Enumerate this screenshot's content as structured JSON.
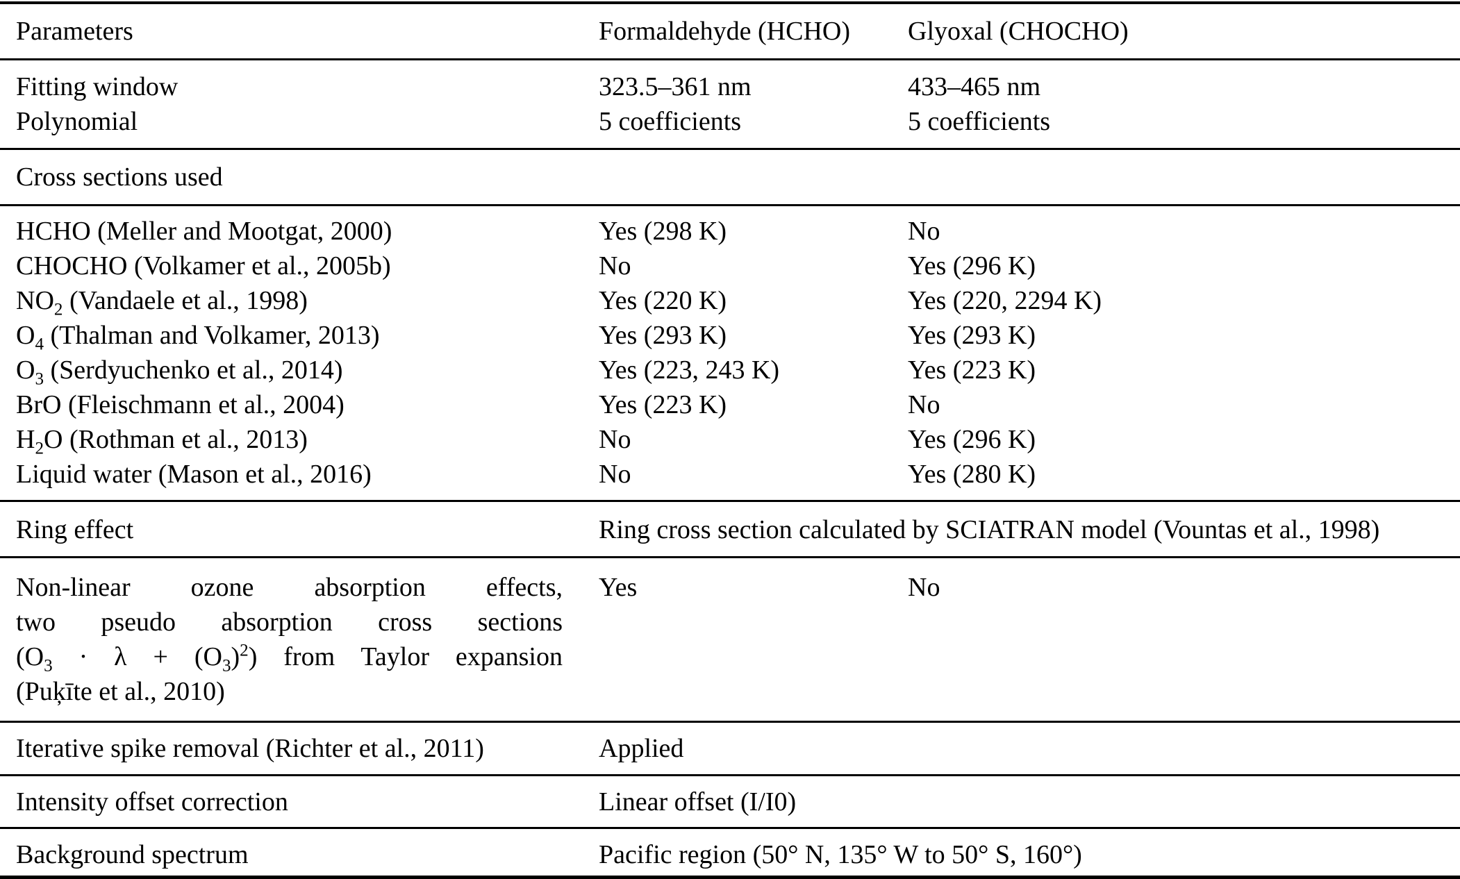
{
  "colors": {
    "text": "#000000",
    "background": "#ffffff",
    "rule": "#000000"
  },
  "table": {
    "header": {
      "col1": "Parameters",
      "col2": "Formaldehyde (HCHO)",
      "col3": "Glyoxal (CHOCHO)"
    },
    "fitting_rows": [
      {
        "label": "Fitting window",
        "hcho": "323.5–361 nm",
        "chocho": "433–465 nm"
      },
      {
        "label": "Polynomial",
        "hcho": "5 coefficients",
        "chocho": "5 coefficients"
      }
    ],
    "section_title": "Cross sections used",
    "cross_sections": [
      {
        "pre": "HCHO (Meller and Mootgat, 2000)",
        "sub": "",
        "post": "",
        "hcho": "Yes (298 K)",
        "chocho": "No"
      },
      {
        "pre": "CHOCHO (Volkamer et al., 2005b)",
        "sub": "",
        "post": "",
        "hcho": "No",
        "chocho": "Yes (296 K)"
      },
      {
        "pre": "NO",
        "sub": "2",
        "post": " (Vandaele et al., 1998)",
        "hcho": "Yes (220 K)",
        "chocho": "Yes (220, 2294 K)"
      },
      {
        "pre": "O",
        "sub": "4",
        "post": " (Thalman and Volkamer, 2013)",
        "hcho": "Yes (293 K)",
        "chocho": "Yes (293 K)"
      },
      {
        "pre": "O",
        "sub": "3",
        "post": " (Serdyuchenko et al., 2014)",
        "hcho": "Yes (223, 243 K)",
        "chocho": "Yes (223 K)"
      },
      {
        "pre": "BrO (Fleischmann et al., 2004)",
        "sub": "",
        "post": "",
        "hcho": "Yes (223 K)",
        "chocho": "No"
      },
      {
        "pre": "H",
        "sub": "2",
        "post": "O (Rothman et al., 2013)",
        "hcho": "No",
        "chocho": "Yes (296 K)"
      },
      {
        "pre": "Liquid water (Mason et al., 2016)",
        "sub": "",
        "post": "",
        "hcho": "No",
        "chocho": "Yes (280 K)"
      }
    ],
    "ring": {
      "label": "Ring effect",
      "value": "Ring cross section calculated by SCIATRAN model (Vountas et al., 1998)"
    },
    "nonlinear": {
      "line1": "Non-linear ozone absorption effects,",
      "line2": "two pseudo absorption cross sections",
      "line3": {
        "s1": "(O",
        "sub1": "3",
        "s2": " · λ + (O",
        "sub2": "3",
        "s3": ")",
        "sup2": "2",
        "s4": ")",
        "rest": " from Taylor expansion"
      },
      "line4": "(Puķīte et al., 2010)",
      "hcho": "Yes",
      "chocho": "No"
    },
    "spike": {
      "label": "Iterative spike removal (Richter et al., 2011)",
      "value": "Applied"
    },
    "offset": {
      "label": "Intensity offset correction",
      "value": "Linear offset (I/I0)"
    },
    "background": {
      "label": "Background spectrum",
      "value": "Pacific region (50° N, 135° W to 50° S, 160°)"
    }
  }
}
